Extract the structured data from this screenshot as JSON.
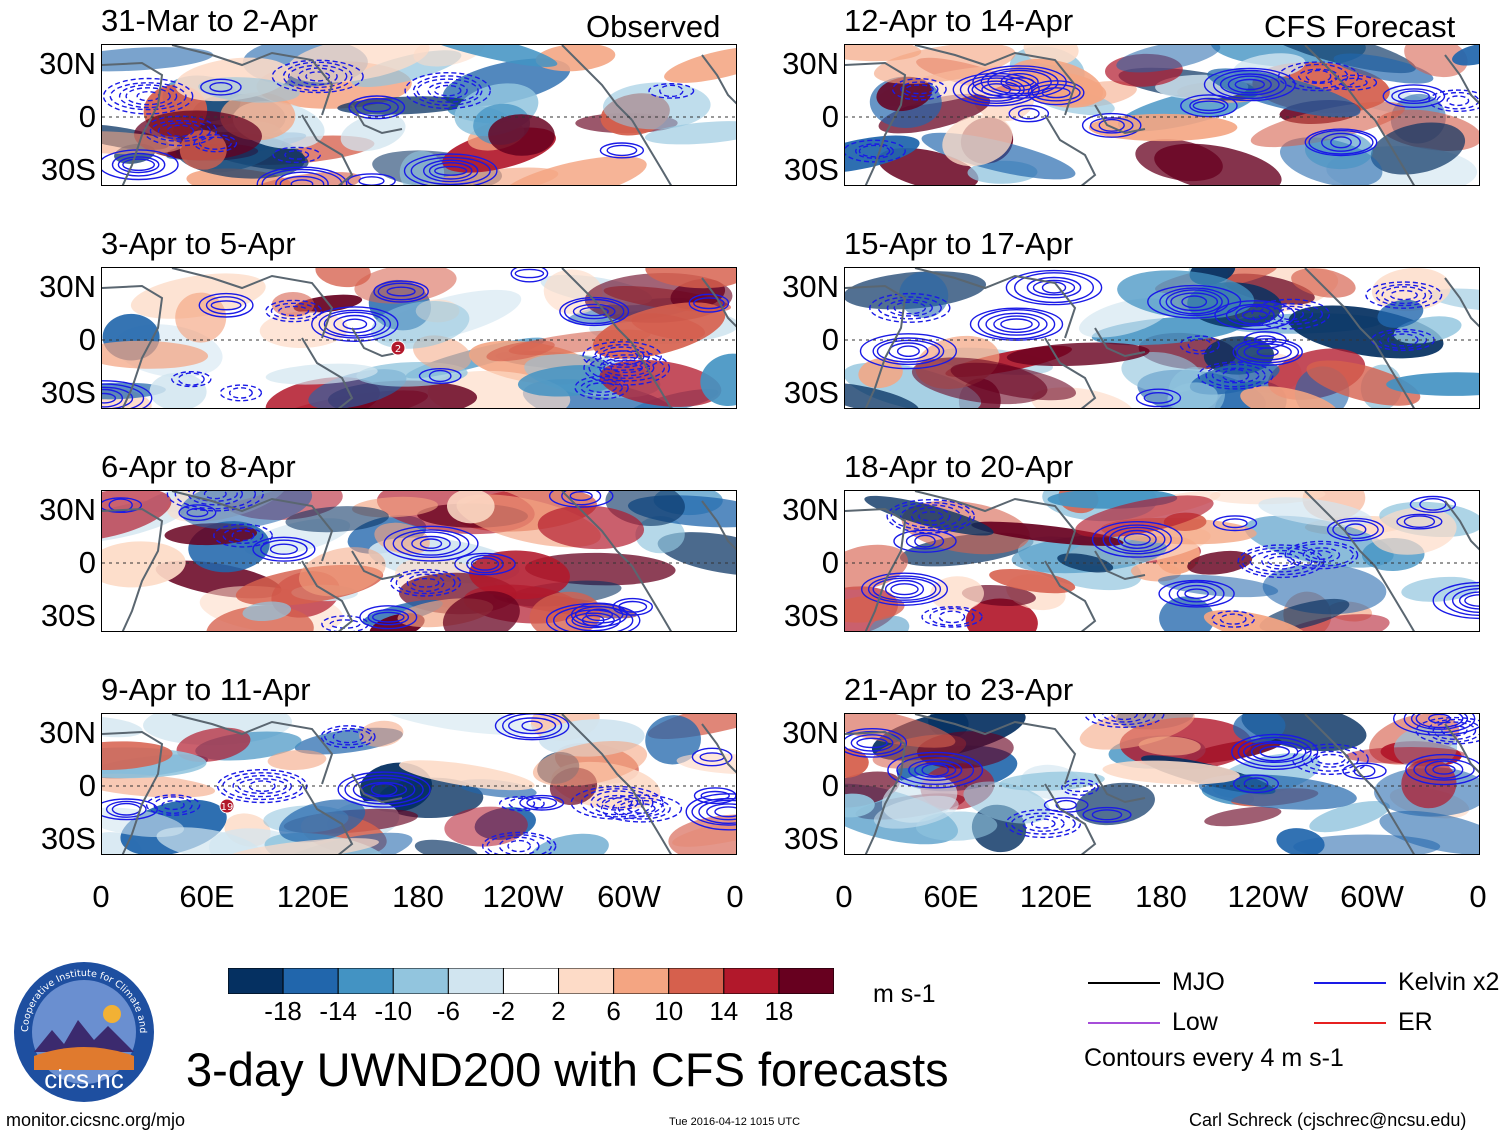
{
  "chart_data": {
    "type": "heatmap",
    "variable": "3-day UWND200 with CFS forecasts",
    "units": "m s-1",
    "column_labels": [
      "Observed",
      "CFS Forecast"
    ],
    "lat_ticks": [
      "30N",
      "0",
      "30S"
    ],
    "lon_ticks": [
      "0",
      "60E",
      "120E",
      "180",
      "120W",
      "60W",
      "0"
    ],
    "panels": [
      {
        "title": "31-Mar to 2-Apr",
        "column": "Observed"
      },
      {
        "title": "3-Apr to 5-Apr",
        "column": "Observed",
        "storm_label": "2"
      },
      {
        "title": "6-Apr to 8-Apr",
        "column": "Observed"
      },
      {
        "title": "9-Apr to 11-Apr",
        "column": "Observed",
        "storm_label": "19"
      },
      {
        "title": "12-Apr to 14-Apr",
        "column": "CFS Forecast"
      },
      {
        "title": "15-Apr to 17-Apr",
        "column": "CFS Forecast"
      },
      {
        "title": "18-Apr to 20-Apr",
        "column": "CFS Forecast"
      },
      {
        "title": "21-Apr to 23-Apr",
        "column": "CFS Forecast"
      }
    ],
    "colorbar": {
      "labels": [
        "-18",
        "-14",
        "-10",
        "-6",
        "-2",
        "2",
        "6",
        "10",
        "14",
        "18"
      ],
      "colors": [
        "#053061",
        "#2166ac",
        "#4393c3",
        "#92c5de",
        "#d1e5f0",
        "#ffffff",
        "#fddbc7",
        "#f4a582",
        "#d6604d",
        "#b2182b",
        "#67001f"
      ],
      "units": "m s-1"
    },
    "contour_legend": [
      {
        "label": "MJO",
        "color": "#000000"
      },
      {
        "label": "Kelvin x2",
        "color": "#1a1ae6"
      },
      {
        "label": "Low",
        "color": "#a64dd9"
      },
      {
        "label": "ER",
        "color": "#e62020"
      }
    ],
    "contour_note": "Contours every 4 m s-1"
  },
  "logo": {
    "text": "cics.nc",
    "ring_text": "Cooperative Institute for Climate and Satellites"
  },
  "footer": {
    "left": "monitor.cicsnc.org/mjo",
    "center": "Tue 2016-04-12 1015 UTC",
    "right": "Carl Schreck (cjschrec@ncsu.edu)"
  }
}
